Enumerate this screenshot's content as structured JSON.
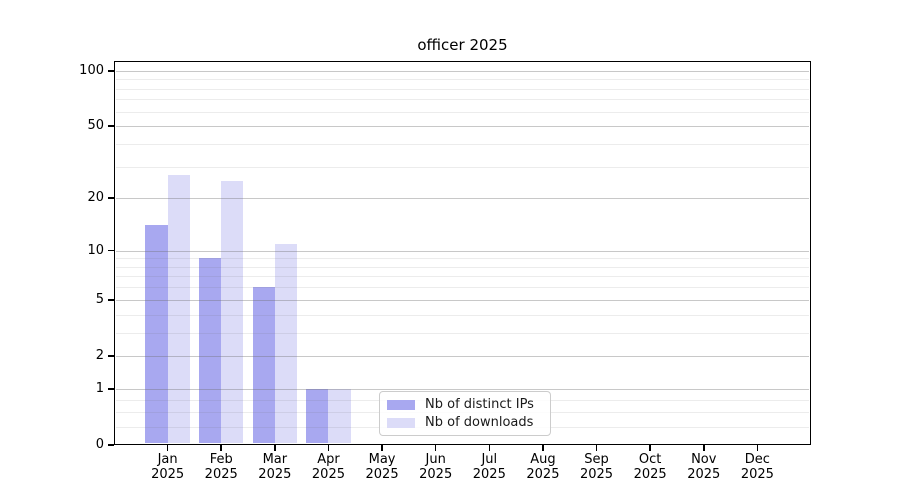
{
  "chart_data": {
    "type": "bar",
    "title": "officer 2025",
    "categories": [
      "Jan",
      "Feb",
      "Mar",
      "Apr",
      "May",
      "Jun",
      "Jul",
      "Aug",
      "Sep",
      "Oct",
      "Nov",
      "Dec"
    ],
    "year": "2025",
    "series": [
      {
        "name": "Nb of distinct IPs",
        "color": "#a8a8f0",
        "values": [
          14,
          9,
          6,
          1,
          0,
          0,
          0,
          0,
          0,
          0,
          0,
          0
        ]
      },
      {
        "name": "Nb of downloads",
        "color": "#dcdcf8",
        "values": [
          27,
          25,
          11,
          1,
          0,
          0,
          0,
          0,
          0,
          0,
          0,
          0
        ]
      }
    ],
    "xlabel": "",
    "ylabel": "",
    "yscale": "log1p",
    "ylim": [
      0,
      113
    ],
    "yticks": [
      0,
      1,
      2,
      5,
      10,
      20,
      50,
      100
    ],
    "yticks_minor": [
      0.25,
      0.5,
      0.75,
      3,
      4,
      6,
      7,
      8,
      9,
      30,
      40,
      60,
      70,
      80,
      90
    ],
    "grid": true,
    "legend_position": "lower center",
    "colors": {
      "spine": "#000000",
      "grid_major": "#cdcdcd",
      "grid_minor": "#ededed",
      "background": "#ffffff",
      "text": "#000000"
    }
  }
}
